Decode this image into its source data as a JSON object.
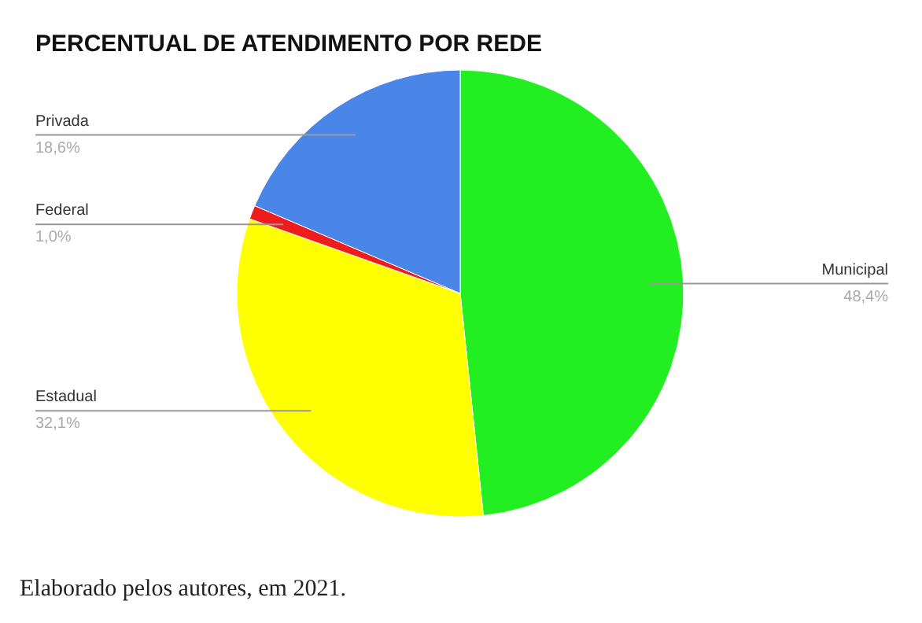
{
  "chart_data": {
    "type": "pie",
    "title": "PERCENTUAL DE ATENDIMENTO POR REDE",
    "categories": [
      "Municipal",
      "Estadual",
      "Federal",
      "Privada"
    ],
    "values": [
      48.4,
      32.1,
      1.0,
      18.6
    ],
    "value_labels": [
      "48,4%",
      "32,1%",
      "1,0%",
      "18,6%"
    ],
    "colors": [
      "#22ee22",
      "#ffff00",
      "#ee1c1c",
      "#4a86e8"
    ],
    "annotations": [
      "Elaborado pelos autores, em 2021."
    ]
  }
}
